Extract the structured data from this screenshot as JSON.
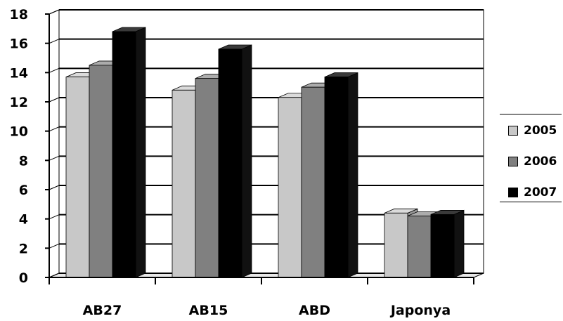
{
  "chart_data": {
    "type": "bar",
    "categories": [
      "AB27",
      "AB15",
      "ABD",
      "Japonya"
    ],
    "series": [
      {
        "name": "2005",
        "values": [
          13.7,
          12.8,
          12.3,
          4.4
        ],
        "color": "#c8c8c8"
      },
      {
        "name": "2006",
        "values": [
          14.5,
          13.6,
          13.0,
          4.2
        ],
        "color": "#808080"
      },
      {
        "name": "2007",
        "values": [
          16.8,
          15.6,
          13.7,
          4.3
        ],
        "color": "#000000"
      }
    ],
    "y_ticks": [
      "0",
      "2",
      "4",
      "6",
      "8",
      "10",
      "12",
      "14",
      "16",
      "18"
    ],
    "ylim": [
      0,
      18
    ],
    "grid": true,
    "legend_position": "right",
    "style": "3d-column"
  }
}
